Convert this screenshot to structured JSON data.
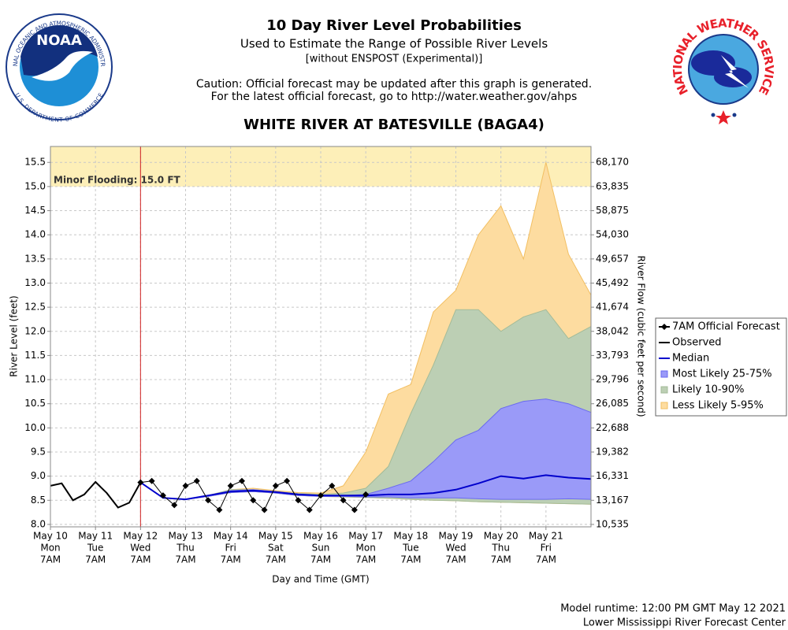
{
  "chart_data": {
    "type": "line",
    "title": "10 Day River Level Probabilities",
    "subtitle": "Used to Estimate the Range of Possible River Levels",
    "subtitle2": "[without ENSPOST (Experimental)]",
    "caution": [
      "Caution: Official forecast may be updated after this graph is generated.",
      "For the latest official forecast, go to http://water.weather.gov/ahps"
    ],
    "station": "WHITE RIVER AT BATESVILLE (BAGA4)",
    "ylabel": "River Level (feet)",
    "y2label": "River Flow (cubic feet per second)",
    "xlabel": "Day and Time (GMT)",
    "footer": [
      "Model runtime: 12:00 PM GMT May 12 2021",
      "Lower Mississippi River Forecast Center"
    ],
    "logos": {
      "noaa": {
        "center": "NOAA",
        "ring_top": "NATIONAL OCEANIC AND ATMOSPHERIC ADMINISTRATION",
        "ring_bottom": "U.S. DEPARTMENT OF COMMERCE"
      },
      "nws": {
        "ring": "NATIONAL WEATHER SERVICE"
      }
    },
    "grid": true,
    "legend_position": "right",
    "xlim": [
      "May 10 07:00",
      "May 22 07:00"
    ],
    "xticks": [
      {
        "value": "May 10 07:00",
        "label": [
          "May 10",
          "Mon",
          "7AM"
        ]
      },
      {
        "value": "May 11 07:00",
        "label": [
          "May 11",
          "Tue",
          "7AM"
        ]
      },
      {
        "value": "May 12 07:00",
        "label": [
          "May 12",
          "Wed",
          "7AM"
        ]
      },
      {
        "value": "May 13 07:00",
        "label": [
          "May 13",
          "Thu",
          "7AM"
        ]
      },
      {
        "value": "May 14 07:00",
        "label": [
          "May 14",
          "Fri",
          "7AM"
        ]
      },
      {
        "value": "May 15 07:00",
        "label": [
          "May 15",
          "Sat",
          "7AM"
        ]
      },
      {
        "value": "May 16 07:00",
        "label": [
          "May 16",
          "Sun",
          "7AM"
        ]
      },
      {
        "value": "May 17 07:00",
        "label": [
          "May 17",
          "Mon",
          "7AM"
        ]
      },
      {
        "value": "May 18 07:00",
        "label": [
          "May 18",
          "Tue",
          "7AM"
        ]
      },
      {
        "value": "May 19 07:00",
        "label": [
          "May 19",
          "Wed",
          "7AM"
        ]
      },
      {
        "value": "May 20 07:00",
        "label": [
          "May 20",
          "Thu",
          "7AM"
        ]
      },
      {
        "value": "May 21 07:00",
        "label": [
          "May 21",
          "Fri",
          "7AM"
        ]
      }
    ],
    "ylim": [
      7.95,
      15.83
    ],
    "yticks": [
      {
        "value": 8,
        "label": "8.0"
      },
      8.5,
      {
        "value": 9,
        "label": "9.0"
      },
      9.5,
      {
        "value": 10,
        "label": "10.0"
      },
      10.5,
      {
        "value": 11,
        "label": "11.0"
      },
      11.5,
      {
        "value": 12,
        "label": "12.0"
      },
      12.5,
      {
        "value": 13,
        "label": "13.0"
      },
      13.5,
      {
        "value": 14,
        "label": "14.0"
      },
      14.5,
      {
        "value": 15,
        "label": "15.0"
      },
      15.5
    ],
    "y2ticks": [
      {
        "value": 10535,
        "label": "10,535"
      },
      {
        "value": 13167,
        "label": "13,167"
      },
      {
        "value": 16331,
        "label": "16,331"
      },
      {
        "value": 19382,
        "label": "19,382"
      },
      {
        "value": 22688,
        "label": "22,688"
      },
      {
        "value": 26085,
        "label": "26,085"
      },
      {
        "value": 29796,
        "label": "29,796"
      },
      {
        "value": 33793,
        "label": "33,793"
      },
      {
        "value": 38042,
        "label": "38,042"
      },
      {
        "value": 41674,
        "label": "41,674"
      },
      {
        "value": 45492,
        "label": "45,492"
      },
      {
        "value": 49657,
        "label": "49,657"
      },
      {
        "value": 54030,
        "label": "54,030"
      },
      {
        "value": 58875,
        "label": "58,875"
      },
      {
        "value": 63835,
        "label": "63,835"
      },
      {
        "value": 68170,
        "label": "68,170"
      }
    ],
    "flood": {
      "stage": 15,
      "label": "Minor Flooding: 15.0 FT",
      "color": "#fdefb8"
    },
    "current_time": "May 12 07:00",
    "series": [
      {
        "name": "7AM Official Forecast",
        "color": "#000000",
        "marker": "diamond",
        "x": [
          "May 12 07:00",
          "May 12 13:00",
          "May 12 19:00",
          "May 13 01:00",
          "May 13 07:00",
          "May 13 13:00",
          "May 13 19:00",
          "May 14 01:00",
          "May 14 07:00",
          "May 14 13:00",
          "May 14 19:00",
          "May 15 01:00",
          "May 15 07:00",
          "May 15 13:00",
          "May 15 19:00",
          "May 16 01:00",
          "May 16 07:00",
          "May 16 13:00",
          "May 16 19:00",
          "May 17 01:00",
          "May 17 07:00"
        ],
        "values": [
          8.87,
          8.9,
          8.6,
          8.4,
          8.8,
          8.9,
          8.5,
          8.3,
          8.8,
          8.9,
          8.5,
          8.3,
          8.8,
          8.9,
          8.5,
          8.3,
          8.6,
          8.8,
          8.5,
          8.3,
          8.62
        ]
      },
      {
        "name": "Observed",
        "color": "#000000",
        "x": [
          "May 10 07:00",
          "May 10 13:00",
          "May 10 19:00",
          "May 11 01:00",
          "May 11 07:00",
          "May 11 13:00",
          "May 11 19:00",
          "May 12 01:00",
          "May 12 07:00"
        ],
        "values": [
          8.8,
          8.85,
          8.5,
          8.62,
          8.88,
          8.65,
          8.35,
          8.45,
          8.87
        ]
      },
      {
        "name": "Median",
        "color": "#0000cc",
        "x": [
          "May 12 07:00",
          "May 12 19:00",
          "May 13 07:00",
          "May 13 19:00",
          "May 14 07:00",
          "May 14 19:00",
          "May 15 07:00",
          "May 15 19:00",
          "May 16 07:00",
          "May 16 19:00",
          "May 17 07:00",
          "May 17 19:00",
          "May 18 07:00",
          "May 18 19:00",
          "May 19 07:00",
          "May 19 19:00",
          "May 20 07:00",
          "May 20 19:00",
          "May 21 07:00",
          "May 21 19:00",
          "May 22 07:00"
        ],
        "values": [
          8.87,
          8.55,
          8.52,
          8.6,
          8.68,
          8.7,
          8.67,
          8.62,
          8.6,
          8.6,
          8.6,
          8.62,
          8.62,
          8.65,
          8.72,
          8.85,
          9.0,
          8.95,
          9.02,
          8.97,
          8.94
        ]
      }
    ],
    "bands": [
      {
        "name": "Most Likely 25-75%",
        "color": "#9a9af8",
        "stroke": "#6a6af0",
        "x": [
          "May 12 07:00",
          "May 12 19:00",
          "May 13 07:00",
          "May 13 19:00",
          "May 14 07:00",
          "May 14 19:00",
          "May 15 07:00",
          "May 15 19:00",
          "May 16 07:00",
          "May 16 19:00",
          "May 17 07:00",
          "May 17 19:00",
          "May 18 07:00",
          "May 18 19:00",
          "May 19 07:00",
          "May 19 19:00",
          "May 20 07:00",
          "May 20 19:00",
          "May 21 07:00",
          "May 21 19:00",
          "May 22 07:00"
        ],
        "lower": [
          8.87,
          8.55,
          8.52,
          8.58,
          8.66,
          8.68,
          8.65,
          8.6,
          8.58,
          8.58,
          8.57,
          8.57,
          8.55,
          8.55,
          8.55,
          8.53,
          8.52,
          8.52,
          8.52,
          8.53,
          8.52
        ],
        "upper": [
          8.87,
          8.55,
          8.52,
          8.6,
          8.7,
          8.72,
          8.68,
          8.63,
          8.6,
          8.6,
          8.62,
          8.75,
          8.9,
          9.3,
          9.75,
          9.95,
          10.4,
          10.55,
          10.6,
          10.5,
          10.32
        ]
      },
      {
        "name": "Likely 10-90%",
        "color": "#bccfb4",
        "stroke": "#a3bb98",
        "x": [
          "May 12 07:00",
          "May 12 19:00",
          "May 13 07:00",
          "May 13 19:00",
          "May 14 07:00",
          "May 14 19:00",
          "May 15 07:00",
          "May 15 19:00",
          "May 16 07:00",
          "May 16 19:00",
          "May 17 07:00",
          "May 17 19:00",
          "May 18 07:00",
          "May 18 19:00",
          "May 19 07:00",
          "May 19 19:00",
          "May 20 07:00",
          "May 20 19:00",
          "May 21 07:00",
          "May 21 19:00",
          "May 22 07:00"
        ],
        "lower": [
          8.87,
          8.55,
          8.52,
          8.58,
          8.66,
          8.68,
          8.65,
          8.6,
          8.58,
          8.57,
          8.56,
          8.54,
          8.52,
          8.5,
          8.49,
          8.47,
          8.46,
          8.45,
          8.44,
          8.43,
          8.42
        ],
        "upper": [
          8.87,
          8.55,
          8.52,
          8.6,
          8.72,
          8.72,
          8.68,
          8.64,
          8.62,
          8.65,
          8.75,
          9.2,
          10.3,
          11.3,
          12.45,
          12.45,
          12.0,
          12.3,
          12.45,
          11.85,
          12.1
        ]
      },
      {
        "name": "Less Likely 5-95%",
        "color": "#fddca0",
        "stroke": "#f2bf62",
        "x": [
          "May 12 07:00",
          "May 12 19:00",
          "May 13 07:00",
          "May 13 19:00",
          "May 14 07:00",
          "May 14 19:00",
          "May 15 07:00",
          "May 15 19:00",
          "May 16 07:00",
          "May 16 19:00",
          "May 17 07:00",
          "May 17 19:00",
          "May 18 07:00",
          "May 18 19:00",
          "May 19 07:00",
          "May 19 19:00",
          "May 20 07:00",
          "May 20 19:00",
          "May 21 07:00",
          "May 21 19:00",
          "May 22 07:00"
        ],
        "lower": [
          8.87,
          8.55,
          8.52,
          8.58,
          8.66,
          8.68,
          8.65,
          8.6,
          8.58,
          8.57,
          8.56,
          8.54,
          8.52,
          8.5,
          8.49,
          8.47,
          8.46,
          8.45,
          8.44,
          8.43,
          8.42
        ],
        "upper": [
          8.87,
          8.55,
          8.52,
          8.6,
          8.72,
          8.75,
          8.7,
          8.66,
          8.65,
          8.8,
          9.5,
          10.7,
          10.9,
          12.4,
          12.85,
          14.0,
          14.6,
          13.5,
          15.5,
          13.6,
          12.75
        ]
      }
    ]
  }
}
